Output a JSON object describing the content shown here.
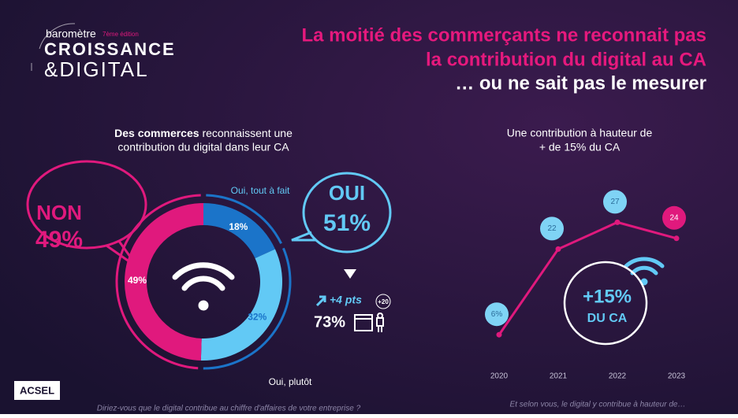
{
  "brand": {
    "line1": "baromètre",
    "edition": "7ème édition",
    "line2": "CROISSANCE",
    "line3": "&DIGITAL"
  },
  "headline": [
    "La moitié des commerçants ne reconnait pas",
    "la contribution du digital au CA",
    "… ou ne sait pas le mesurer"
  ],
  "chart_data": [
    {
      "type": "pie",
      "title_bold": "Des commerces",
      "title": "reconnaissent une",
      "title2": "contribution du digital dans leur CA",
      "categories": [
        "Oui, tout à fait",
        "Oui, plutôt",
        "Non"
      ],
      "values": [
        18,
        32,
        49
      ],
      "value_labels": [
        "18%",
        "32%",
        "49%"
      ],
      "colors": [
        "#1b74c9",
        "#62c9f5",
        "#e0197d"
      ],
      "callouts": {
        "non": "NON",
        "non_value": "49%",
        "oui": "OUI",
        "oui_value": "51%",
        "trend": "+4 pts",
        "age": "+20",
        "share": "73%"
      }
    },
    {
      "type": "line",
      "title": "Une contribution à hauteur de",
      "title2": "+ de 15% du CA",
      "categories": [
        "2020",
        "2021",
        "2022",
        "2023"
      ],
      "values": [
        6,
        22,
        27,
        24
      ],
      "value_labels": [
        "6%",
        "22",
        "27",
        "24"
      ],
      "color": "#e0197d",
      "point_colors": [
        "#7fd3f5",
        "#7fd3f5",
        "#7fd3f5",
        "#e0197d"
      ],
      "ylim": [
        0,
        30
      ],
      "badge": "+15%",
      "badge2": "DU CA"
    }
  ],
  "footer": {
    "logo": "ACSEL",
    "question1": "Diriez-vous que le digital contribue au chiffre d'affaires de votre entreprise ?",
    "question2": "Et selon vous, le digital y contribue à hauteur de…"
  }
}
